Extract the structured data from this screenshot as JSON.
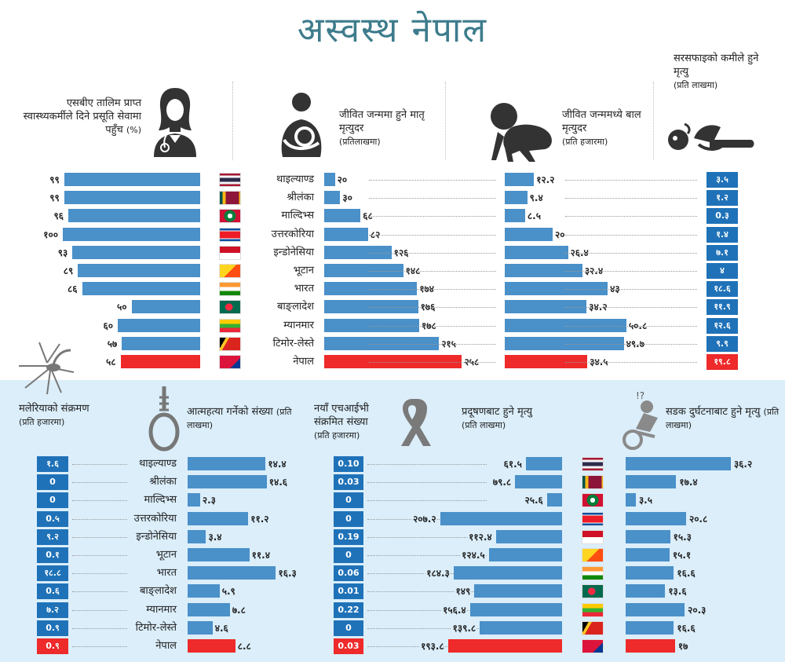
{
  "title": "अस्वस्थ नेपाल",
  "colors": {
    "bar": "#4a90c9",
    "nepal": "#ee2a2a",
    "box": "#1f72b8",
    "title": "#3d7c8c"
  },
  "icons": {
    "top": [
      "doctor-icon",
      "mother-baby-icon",
      "crawling-baby-icon",
      "sanitation-icon"
    ],
    "bottom": [
      "mosquito-icon",
      "noose-icon",
      "ribbon-icon",
      "accident-icon"
    ],
    "flags": [
      "thailand-flag-icon",
      "srilanka-flag-icon",
      "maldives-flag-icon",
      "northkorea-flag-icon",
      "indonesia-flag-icon",
      "bhutan-flag-icon",
      "india-flag-icon",
      "bangladesh-flag-icon",
      "myanmar-flag-icon",
      "timorleste-flag-icon",
      "nepal-flag-icon"
    ]
  },
  "labels": {
    "sba_title": "एसबीए तालिम प्राप्त स्वास्थ्यकर्मीले दिने प्रसूति सेवामा पहुँच",
    "sba_unit": "(%)",
    "mmr_title": "जीवित जन्ममा हुने मातृ मृत्युदर",
    "mmr_unit": "(प्रतिलाखमा)",
    "child_title": "जीवित जन्ममध्ये बाल मृत्युदर",
    "child_unit": "(प्रति हजारमा)",
    "sanit_title": "सरसफाइको कमीले हुने मृत्यु",
    "sanit_unit": "(प्रति लाखमा)",
    "malaria_title": "मलेरियाको संक्रमण",
    "malaria_unit": "(प्रति हजारमा)",
    "suicide_title": "आत्महत्या गर्नेको संख्या",
    "suicide_unit": "(प्रति लाखमा)",
    "hiv_title": "नयाँ एचआईभी संक्रमित संख्या",
    "hiv_unit": "(प्रति हजारमा)",
    "pollution_title": "प्रदूषणबाट हुने मृत्यु",
    "pollution_unit": "(प्रति लाखमा)",
    "road_title": "सडक दुर्घटनाबाट हुने मृत्यु",
    "road_unit": "(प्रति लाखमा)",
    "accident_mark": "!?"
  },
  "chart_data": {
    "type": "bar",
    "countries": [
      "थाइल्याण्ड",
      "श्रीलंका",
      "माल्दिभ्स",
      "उत्तरकोरिया",
      "इन्डोनेसिया",
      "भूटान",
      "भारत",
      "बाङ्लादेश",
      "म्यानमार",
      "टिमोर-लेस्ते",
      "नेपाल"
    ],
    "highlight": "नेपाल",
    "series": [
      {
        "name": "एसबीए तालिम प्राप्त स्वास्थ्यकर्मीले दिने प्रसूति सेवामा पहुँच (%)",
        "values": [
          99,
          99,
          96,
          100,
          93,
          89,
          86,
          50,
          60,
          57,
          58
        ],
        "labels": [
          "९९",
          "९९",
          "९६",
          "१००",
          "९३",
          "८९",
          "८६",
          "५०",
          "६०",
          "५७",
          "५८"
        ]
      },
      {
        "name": "जीवित जन्ममा हुने मातृ मृत्युदर (प्रतिलाखमा)",
        "values": [
          20,
          30,
          68,
          82,
          126,
          148,
          174,
          176,
          178,
          215,
          258
        ],
        "labels": [
          "२०",
          "३०",
          "६८",
          "८२",
          "१२६",
          "१४८",
          "१७४",
          "१७६",
          "१७८",
          "२१५",
          "२५८"
        ]
      },
      {
        "name": "जीवित जन्ममध्ये बाल मृत्युदर (प्रति हजारमा)",
        "values": [
          12.2,
          9.4,
          8.5,
          20,
          26.4,
          32.4,
          43,
          34.2,
          50.8,
          49.7,
          34.5
        ],
        "labels": [
          "१२.२",
          "९.४",
          "८.५",
          "२०",
          "२६.४",
          "३२.४",
          "४३",
          "३४.२",
          "५०.८",
          "४९.७",
          "३४.५"
        ]
      },
      {
        "name": "सरसफाइको कमीले हुने मृत्यु (प्रति लाखमा)",
        "values": [
          3.5,
          1.2,
          0.3,
          1.4,
          7.1,
          4,
          18.6,
          11.9,
          12.6,
          9.9,
          19.8
        ],
        "labels": [
          "३.५",
          "१.२",
          "0.३",
          "१.४",
          "७.१",
          "४",
          "१८.६",
          "११.९",
          "१२.६",
          "९.९",
          "१९.८"
        ]
      },
      {
        "name": "मलेरियाको संक्रमण (प्रति हजारमा)",
        "values": [
          1.6,
          0,
          0,
          0.5,
          9.2,
          0.1,
          18.8,
          0.6,
          7.2,
          0.9,
          0.9
        ],
        "labels": [
          "१.६",
          "0",
          "0",
          "0.५",
          "९.२",
          "0.१",
          "१८.८",
          "0.६",
          "७.२",
          "0.९",
          "0.९"
        ]
      },
      {
        "name": "आत्महत्या गर्नेको संख्या (प्रति लाखमा)",
        "values": [
          14.4,
          14.6,
          2.3,
          11.2,
          3.4,
          11.4,
          16.3,
          5.9,
          7.8,
          4.6,
          8.8
        ],
        "labels": [
          "१४.४",
          "१४.६",
          "२.३",
          "११.२",
          "३.४",
          "११.४",
          "१६.३",
          "५.९",
          "७.८",
          "४.६",
          "८.८"
        ]
      },
      {
        "name": "नयाँ एचआईभी संक्रमित संख्या (प्रति हजारमा)",
        "values": [
          0.1,
          0.03,
          0,
          0,
          0.19,
          0,
          0.06,
          0.01,
          0.22,
          0,
          0.03
        ],
        "labels": [
          "0.10",
          "0.03",
          "0",
          "0",
          "0.19",
          "0",
          "0.06",
          "0.01",
          "0.22",
          "0",
          "0.03"
        ]
      },
      {
        "name": "प्रदूषणबाट हुने मृत्यु (प्रति लाखमा)",
        "values": [
          61.5,
          79.8,
          25.6,
          207.2,
          112.4,
          124.5,
          184.3,
          149,
          156.4,
          139.8,
          193.8
        ],
        "labels": [
          "६१.५",
          "७९.८",
          "२५.६",
          "२०७.२",
          "११२.४",
          "१२४.५",
          "१८४.३",
          "१४९",
          "१५६.४",
          "१३९.८",
          "१९३.८"
        ]
      },
      {
        "name": "सडक दुर्घटनाबाट हुने मृत्यु (प्रति लाखमा)",
        "values": [
          36.2,
          17.4,
          3.5,
          20.8,
          15.3,
          15.1,
          16.6,
          13.6,
          20.3,
          16.6,
          17
        ],
        "labels": [
          "३६.२",
          "१७.४",
          "३.५",
          "२०.८",
          "१५.३",
          "१५.१",
          "१६.६",
          "१३.६",
          "२०.३",
          "१६.६",
          "१७"
        ]
      }
    ]
  }
}
